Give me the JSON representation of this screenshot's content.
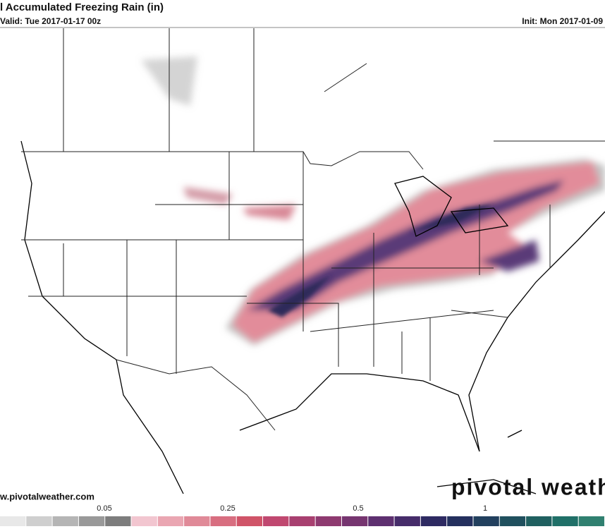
{
  "header": {
    "title": "l Accumulated Freezing Rain (in)",
    "valid": "Valid: Tue 2017-01-17 00z",
    "init": "Init: Mon 2017-01-09"
  },
  "footer": {
    "url": "w.pivotalweather.com",
    "watermark": "pivotal weath"
  },
  "colorbar": {
    "labels": [
      "0.05",
      "0.25",
      "0.5",
      "1"
    ]
  }
}
